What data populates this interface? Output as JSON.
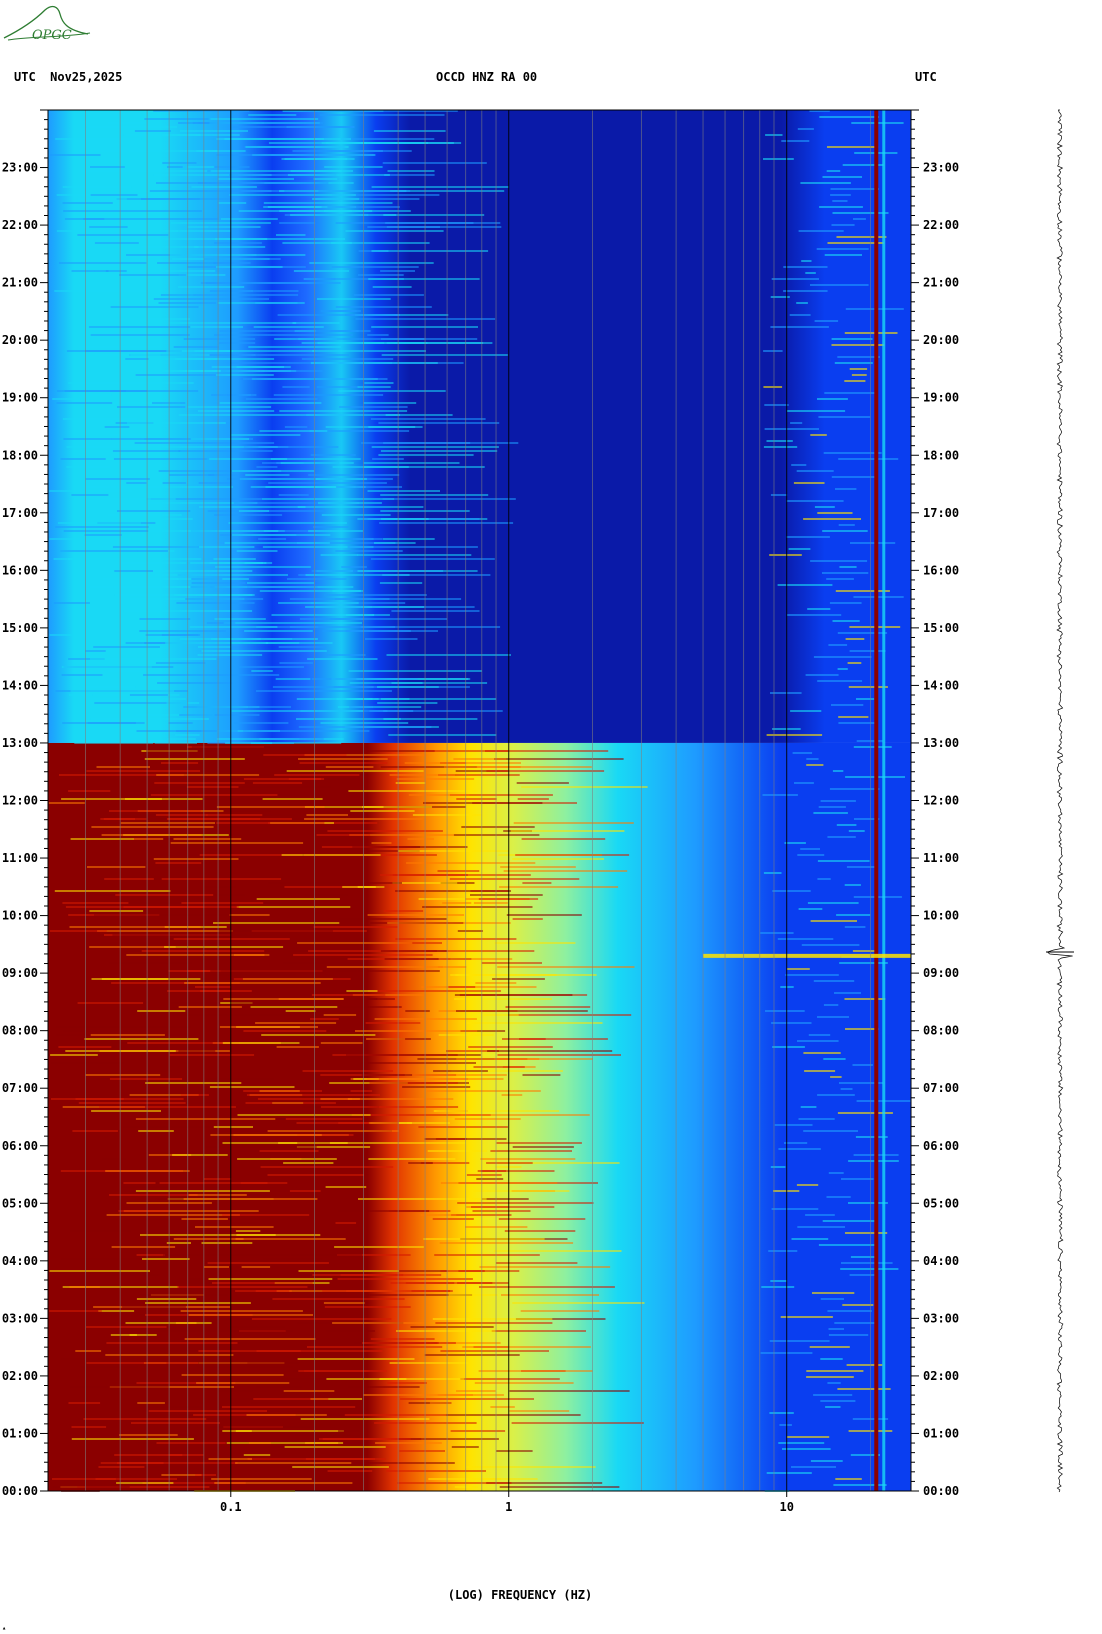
{
  "header": {
    "left": "UTC  Nov25,2025",
    "center": "OCCD HNZ RA 00",
    "right": "UTC"
  },
  "logo": {
    "text": "OPGC",
    "color": "#2e7d32"
  },
  "chart_data": {
    "type": "heatmap",
    "xscale": "log",
    "xlim": [
      0.022,
      28
    ],
    "x_ticks": [
      {
        "value": 0.1,
        "label": "0.1"
      },
      {
        "value": 1,
        "label": "1"
      },
      {
        "value": 10,
        "label": "10"
      }
    ],
    "xlabel": "(LOG) FREQUENCY (HZ)",
    "ylim_hours": [
      0,
      24
    ],
    "y_ticks": [
      {
        "hour": 0,
        "label": "00:00"
      },
      {
        "hour": 1,
        "label": "01:00"
      },
      {
        "hour": 2,
        "label": "02:00"
      },
      {
        "hour": 3,
        "label": "03:00"
      },
      {
        "hour": 4,
        "label": "04:00"
      },
      {
        "hour": 5,
        "label": "05:00"
      },
      {
        "hour": 6,
        "label": "06:00"
      },
      {
        "hour": 7,
        "label": "07:00"
      },
      {
        "hour": 8,
        "label": "08:00"
      },
      {
        "hour": 9,
        "label": "09:00"
      },
      {
        "hour": 10,
        "label": "10:00"
      },
      {
        "hour": 11,
        "label": "11:00"
      },
      {
        "hour": 12,
        "label": "12:00"
      },
      {
        "hour": 13,
        "label": "13:00"
      },
      {
        "hour": 14,
        "label": "14:00"
      },
      {
        "hour": 15,
        "label": "15:00"
      },
      {
        "hour": 16,
        "label": "16:00"
      },
      {
        "hour": 17,
        "label": "17:00"
      },
      {
        "hour": 18,
        "label": "18:00"
      },
      {
        "hour": 19,
        "label": "19:00"
      },
      {
        "hour": 20,
        "label": "20:00"
      },
      {
        "hour": 21,
        "label": "21:00"
      },
      {
        "hour": 22,
        "label": "22:00"
      },
      {
        "hour": 23,
        "label": "23:00"
      }
    ],
    "regime_change_hour": 13,
    "colors": {
      "dark_red": "#8b0000",
      "red": "#d51a00",
      "orange": "#ff7a00",
      "yellow": "#ffe400",
      "light_green": "#a8f080",
      "cyan": "#19d9f5",
      "light_blue": "#1e9bff",
      "blue": "#0a3ef0",
      "dark_blue": "#0a1aa8"
    },
    "event_hour": 9.3,
    "persistent_line_hz": 21
  }
}
